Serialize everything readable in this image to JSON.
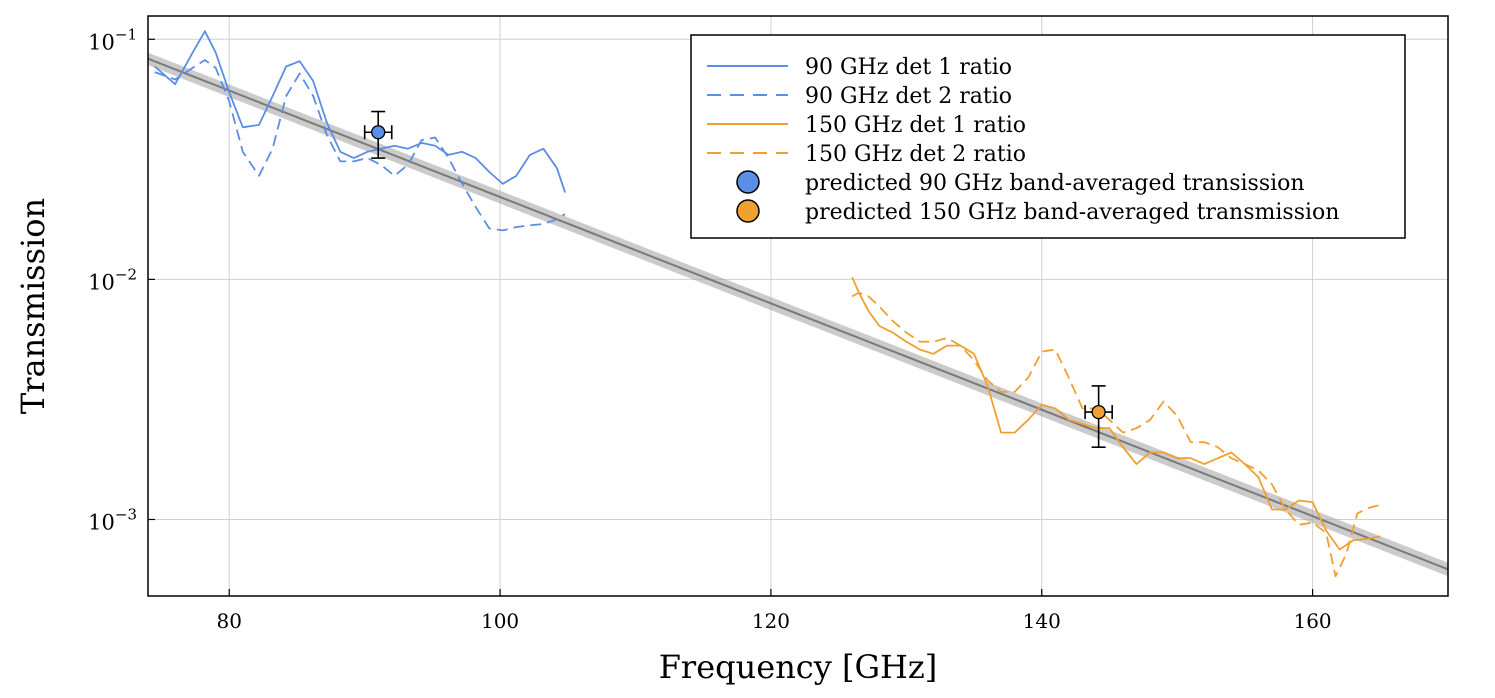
{
  "chart_data": {
    "type": "line",
    "xscale": "linear",
    "yscale": "log",
    "xlabel": "Frequency [GHz]",
    "ylabel": "Transmission",
    "xlim": [
      74,
      170
    ],
    "ylim": [
      0.00048,
      0.125
    ],
    "grid": true,
    "legend_position": "top-right",
    "xticks": [
      80,
      100,
      120,
      140,
      160
    ],
    "yticks": [
      {
        "value": 0.1,
        "base": "10",
        "exp": "−1"
      },
      {
        "value": 0.01,
        "base": "10",
        "exp": "−2"
      },
      {
        "value": 0.001,
        "base": "10",
        "exp": "−3"
      }
    ],
    "fit": {
      "name": "fit",
      "color": "#7a7a7a",
      "x": [
        74,
        170
      ],
      "y": [
        0.083,
        0.00062
      ],
      "band_upper": [
        0.088,
        0.00066
      ],
      "band_lower": [
        0.078,
        0.00058
      ]
    },
    "series": [
      {
        "name": "90 GHz det 1 ratio",
        "color": "#5b8ee6",
        "style": "solid",
        "x": [
          74.5,
          76.0,
          77.3,
          78.2,
          79.0,
          80.0,
          81.0,
          82.2,
          83.2,
          84.2,
          85.2,
          86.2,
          87.2,
          88.2,
          89.2,
          90.2,
          91.2,
          92.2,
          93.2,
          94.2,
          95.2,
          96.2,
          97.2,
          98.2,
          99.2,
          100.2,
          101.2,
          102.2,
          103.2,
          104.2,
          104.8
        ],
        "y": [
          0.077,
          0.065,
          0.088,
          0.108,
          0.088,
          0.06,
          0.043,
          0.044,
          0.058,
          0.077,
          0.081,
          0.067,
          0.045,
          0.034,
          0.032,
          0.034,
          0.035,
          0.036,
          0.035,
          0.037,
          0.036,
          0.033,
          0.034,
          0.032,
          0.028,
          0.025,
          0.027,
          0.033,
          0.035,
          0.029,
          0.023
        ]
      },
      {
        "name": "90 GHz det 2 ratio",
        "color": "#5b8ee6",
        "style": "dashed",
        "x": [
          74.5,
          76.0,
          77.3,
          78.2,
          79.0,
          80.0,
          81.0,
          82.2,
          83.2,
          84.2,
          85.2,
          86.2,
          87.2,
          88.2,
          89.2,
          90.2,
          91.2,
          92.2,
          93.2,
          94.2,
          95.2,
          96.2,
          97.2,
          98.2,
          99.2,
          100.2,
          101.2,
          102.2,
          103.2,
          104.2,
          104.8
        ],
        "y": [
          0.073,
          0.068,
          0.076,
          0.082,
          0.076,
          0.055,
          0.034,
          0.027,
          0.035,
          0.058,
          0.072,
          0.058,
          0.04,
          0.031,
          0.031,
          0.032,
          0.03,
          0.027,
          0.03,
          0.038,
          0.039,
          0.032,
          0.025,
          0.02,
          0.0163,
          0.016,
          0.0165,
          0.0168,
          0.017,
          0.0178,
          0.0187
        ]
      },
      {
        "name": "150 GHz det 1 ratio",
        "color": "#f0a030",
        "style": "solid",
        "x": [
          126.0,
          126.5,
          127.2,
          128.0,
          129.0,
          130.0,
          131.0,
          132.0,
          133.0,
          134.0,
          135.0,
          136.0,
          137.0,
          138.0,
          139.0,
          140.0,
          141.0,
          142.0,
          143.0,
          144.0,
          145.0,
          146.0,
          147.0,
          148.0,
          149.0,
          150.0,
          151.0,
          152.0,
          153.0,
          154.0,
          155.0,
          156.0,
          157.0,
          158.0,
          159.0,
          160.0,
          161.0,
          162.0,
          163.0,
          164.0,
          165.0
        ],
        "y": [
          0.0102,
          0.0088,
          0.0074,
          0.0064,
          0.006,
          0.0055,
          0.0051,
          0.0049,
          0.0053,
          0.0053,
          0.0049,
          0.0036,
          0.0023,
          0.0023,
          0.0026,
          0.003,
          0.0029,
          0.0026,
          0.0025,
          0.0024,
          0.0024,
          0.002,
          0.0017,
          0.0019,
          0.0019,
          0.0018,
          0.0018,
          0.0017,
          0.0018,
          0.0019,
          0.0017,
          0.0015,
          0.0011,
          0.0011,
          0.0012,
          0.00118,
          0.0009,
          0.00075,
          0.00082,
          0.00083,
          0.00085
        ]
      },
      {
        "name": "150 GHz det 2 ratio",
        "color": "#f0a030",
        "style": "dashed",
        "x": [
          126.0,
          126.5,
          127.2,
          128.0,
          129.0,
          130.0,
          131.0,
          132.0,
          133.0,
          134.0,
          135.0,
          136.0,
          137.0,
          138.0,
          139.0,
          140.0,
          141.0,
          142.0,
          143.0,
          144.0,
          145.0,
          146.0,
          147.0,
          148.0,
          149.0,
          150.0,
          151.0,
          152.0,
          153.0,
          154.0,
          155.0,
          156.0,
          157.0,
          158.0,
          159.0,
          160.0,
          161.0,
          161.7,
          162.5,
          163.3,
          164.2,
          165.0
        ],
        "y": [
          0.0085,
          0.0088,
          0.0085,
          0.0077,
          0.0067,
          0.006,
          0.0055,
          0.0055,
          0.0057,
          0.0053,
          0.0046,
          0.0038,
          0.0034,
          0.0034,
          0.0039,
          0.005,
          0.0051,
          0.0039,
          0.0029,
          0.0029,
          0.0026,
          0.0023,
          0.0024,
          0.0026,
          0.0031,
          0.0027,
          0.0021,
          0.0021,
          0.002,
          0.0018,
          0.0017,
          0.0016,
          0.0014,
          0.0011,
          0.00095,
          0.00097,
          0.00088,
          0.00058,
          0.00072,
          0.00106,
          0.00112,
          0.00115
        ]
      }
    ],
    "points": [
      {
        "name": "predicted 90 GHz band-averaged transission",
        "color": "#5b8ee6",
        "x": 91,
        "y": 0.041,
        "xerr": 1,
        "ylow": 0.032,
        "yhigh": 0.05
      },
      {
        "name": "predicted 150 GHz band-averaged transmission",
        "color": "#f0a030",
        "x": 144.2,
        "y": 0.0028,
        "xerr": 1,
        "ylow": 0.002,
        "yhigh": 0.0036
      }
    ]
  }
}
